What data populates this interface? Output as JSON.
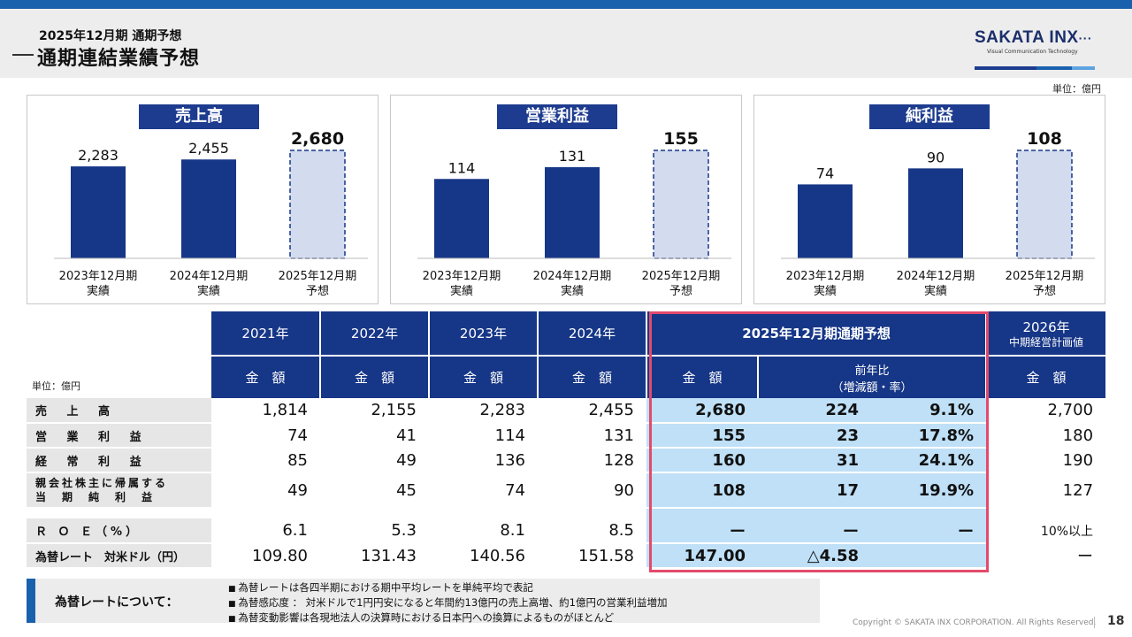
{
  "header": {
    "subtitle": "2025年12月期 通期予想",
    "title": "通期連結業績予想"
  },
  "logo": {
    "name": "SAKATA INX",
    "tagline": "Visual Communication Technology",
    "colors": [
      "#1d3c8f",
      "#1a61ad",
      "#e34a6c"
    ]
  },
  "unit_top": "単位：億円",
  "chart_data": [
    {
      "type": "bar",
      "title": "売上高",
      "categories": [
        "2023年12月期\n実績",
        "2024年12月期\n実績",
        "2025年12月期\n予想"
      ],
      "values": [
        2283,
        2455,
        2680
      ],
      "labels": [
        "2,283",
        "2,455",
        "2,680"
      ],
      "forecast_index": 2,
      "ylim": [
        0,
        2680
      ]
    },
    {
      "type": "bar",
      "title": "営業利益",
      "categories": [
        "2023年12月期\n実績",
        "2024年12月期\n実績",
        "2025年12月期\n予想"
      ],
      "values": [
        114,
        131,
        155
      ],
      "labels": [
        "114",
        "131",
        "155"
      ],
      "forecast_index": 2,
      "ylim": [
        0,
        155
      ]
    },
    {
      "type": "bar",
      "title": "純利益",
      "categories": [
        "2023年12月期\n実績",
        "2024年12月期\n実績",
        "2025年12月期\n予想"
      ],
      "values": [
        74,
        90,
        108
      ],
      "labels": [
        "74",
        "90",
        "108"
      ],
      "forecast_index": 2,
      "ylim": [
        0,
        108
      ]
    }
  ],
  "table": {
    "unit": "単位：億円",
    "years": [
      "2021年",
      "2022年",
      "2023年",
      "2024年"
    ],
    "forecast_header": "2025年12月期通期予想",
    "plan_header_line1": "2026年",
    "plan_header_line2": "中期経営計画値",
    "amount_label": "金　額",
    "yoy_line1": "前年比",
    "yoy_line2": "（増減額・率）",
    "rows": [
      {
        "label": "売 上 高",
        "vals": [
          "1,814",
          "2,155",
          "2,283",
          "2,455"
        ],
        "f": "2,680",
        "d": "224",
        "r": "9.1%",
        "p": "2,700"
      },
      {
        "label": "営 業 利 益",
        "vals": [
          "74",
          "41",
          "114",
          "131"
        ],
        "f": "155",
        "d": "23",
        "r": "17.8%",
        "p": "180"
      },
      {
        "label": "経 常 利 益",
        "vals": [
          "85",
          "49",
          "136",
          "128"
        ],
        "f": "160",
        "d": "31",
        "r": "24.1%",
        "p": "190"
      },
      {
        "label": "親会社株主に帰属する",
        "label2": "当　期　純　利　益",
        "vals": [
          "49",
          "45",
          "74",
          "90"
        ],
        "f": "108",
        "d": "17",
        "r": "19.9%",
        "p": "127"
      }
    ],
    "roe": {
      "label": "Ｒ Ｏ Ｅ（%）",
      "vals": [
        "6.1",
        "5.3",
        "8.1",
        "8.5"
      ],
      "f": "ー",
      "d": "ー",
      "r": "ー",
      "p": "10%以上"
    },
    "fx": {
      "label": "為替レート　対米ドル（円）",
      "vals": [
        "109.80",
        "131.43",
        "140.56",
        "151.58"
      ],
      "f": "147.00",
      "d": "△4.58",
      "r": "",
      "p": "ー"
    }
  },
  "note": {
    "label": "為替レートについて：",
    "items": [
      "為替レートは各四半期における期中平均レートを単純平均で表記",
      "為替感応度 ： 対米ドルで1円円安になると年間約13億円の売上高増、約1億円の営業利益増加",
      "為替変動影響は各現地法人の決算時における日本円への換算によるものがほとんど"
    ]
  },
  "footer": {
    "copyright": "Copyright © SAKATA INX CORPORATION. All Rights Reserved.",
    "page": "18"
  }
}
